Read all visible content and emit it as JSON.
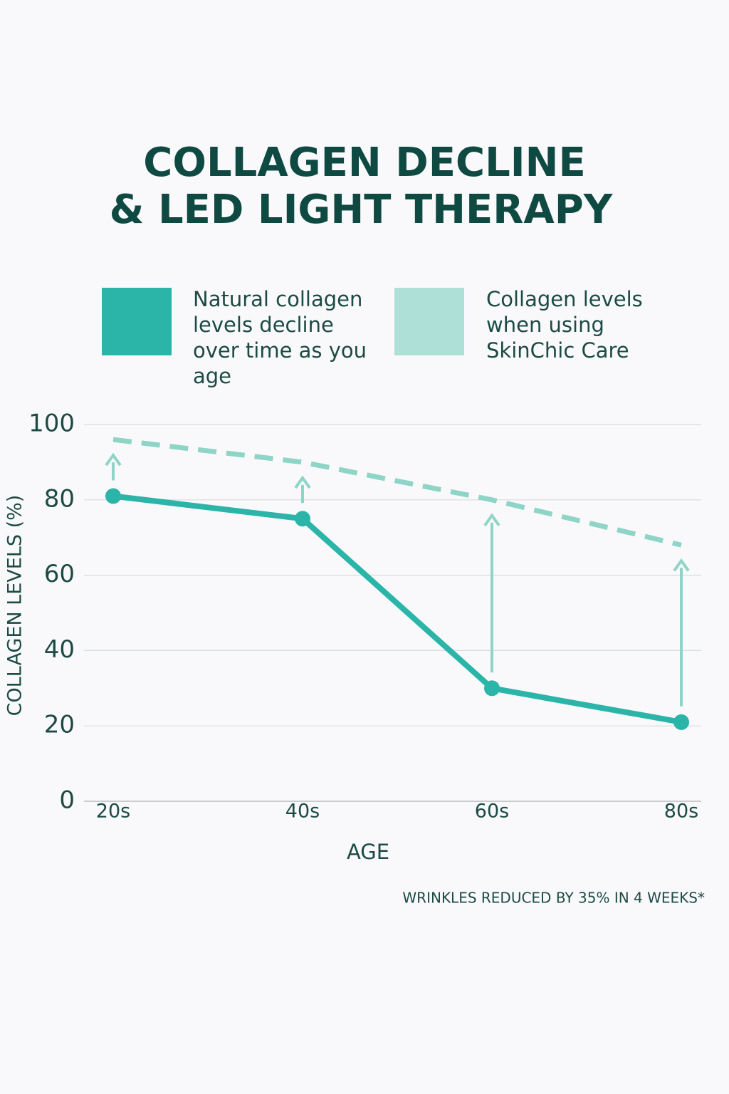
{
  "chart_data": {
    "type": "line",
    "title": [
      "COLLAGEN DECLINE",
      "& LED LIGHT THERAPY"
    ],
    "y_label": "COLLAGEN LEVELS (%)",
    "x_label": "AGE",
    "categories": [
      "20s",
      "40s",
      "60s",
      "80s"
    ],
    "series": [
      {
        "name": "Natural collagen levels decline over time as you age",
        "color": "#2ab5a8",
        "values": [
          81,
          75,
          30,
          21
        ]
      },
      {
        "name": "Collagen levels when using SkinChic Care",
        "color": "#8fd5c7",
        "values": [
          96,
          90,
          80,
          68
        ]
      }
    ],
    "ylim": [
      0,
      100
    ],
    "yticks": [
      0,
      20,
      40,
      60,
      80,
      100
    ],
    "grid": true,
    "note": "WRINKLES REDUCED BY 35% IN 4 WEEKS*"
  }
}
